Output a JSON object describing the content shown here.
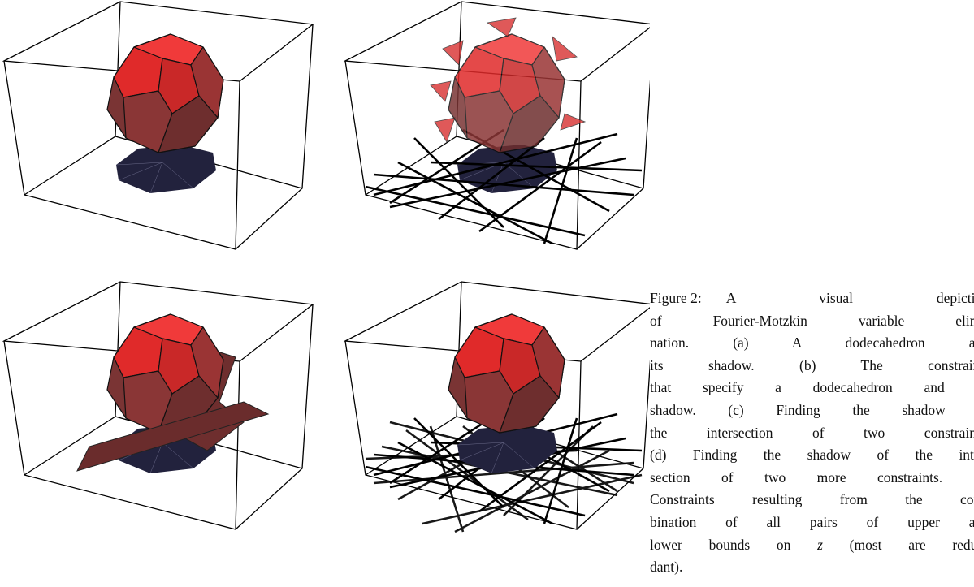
{
  "caption": {
    "label": "Figure 2:",
    "lines": [
      "A visual depiction",
      "of Fourier-Motzkin variable elimi-",
      "nation. (a) A dodecahedron and",
      "its shadow. (b) The constraints",
      "that specify a dodecahedron and its",
      "shadow. (c) Finding the shadow of",
      "the intersection of two constraints.",
      "(d) Finding the shadow of the inter-",
      "section of two more constraints. (e)",
      "Constraints resulting from the com-",
      "bination of all pairs of upper and"
    ],
    "line11": {
      "before": "lower bounds on ",
      "var": "z",
      "after": " (most are redun-"
    },
    "last": "dant)."
  }
}
